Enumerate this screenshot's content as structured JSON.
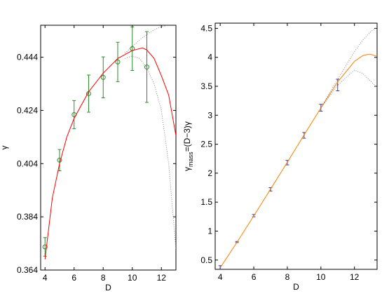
{
  "chart_data": [
    {
      "type": "line",
      "xlabel": "D",
      "ylabel": "γ",
      "xlim": [
        3.7,
        13
      ],
      "ylim": [
        0.364,
        0.456
      ],
      "xticks": [
        4,
        6,
        8,
        10,
        12
      ],
      "yticks": [
        0.364,
        0.384,
        0.404,
        0.424,
        0.444
      ],
      "series": [
        {
          "style": "points",
          "color": "#2e8b2e",
          "x": [
            4,
            5,
            6,
            7,
            8,
            9,
            10,
            11
          ],
          "values": [
            0.3727,
            0.4053,
            0.4224,
            0.4303,
            0.4364,
            0.4422,
            0.4472,
            0.4403
          ],
          "errors": [
            0.0035,
            0.004,
            0.0053,
            0.007,
            0.0077,
            0.0074,
            0.0082,
            0.0133
          ]
        },
        {
          "style": "solid",
          "color": "#ff0000",
          "x": [
            4,
            4.5,
            5,
            5.5,
            6,
            7,
            8,
            9,
            10,
            10.7,
            11,
            11.5,
            12,
            12.5,
            13
          ],
          "values": [
            0.368,
            0.391,
            0.404,
            0.414,
            0.421,
            0.431,
            0.438,
            0.4435,
            0.4465,
            0.4475,
            0.4467,
            0.4435,
            0.437,
            0.4298,
            0.4145
          ]
        },
        {
          "style": "dotted",
          "color": "#888888",
          "x": [
            9.5,
            10,
            10.5,
            11,
            11.5,
            12,
            12.3
          ],
          "values": [
            0.4455,
            0.448,
            0.4505,
            0.4525,
            0.4543,
            0.4555,
            0.4558
          ]
        },
        {
          "style": "dotted",
          "color": "#888888",
          "x": [
            9.5,
            10,
            10.5,
            11,
            11.5,
            12,
            12.5,
            13
          ],
          "values": [
            0.4435,
            0.4445,
            0.4435,
            0.44,
            0.434,
            0.424,
            0.404,
            0.372
          ]
        }
      ]
    },
    {
      "type": "line",
      "xlabel": "D",
      "ylabel": "γ",
      "ylabel_subscript": "mass",
      "ylabel_suffix": "=(D−3)γ",
      "xlim": [
        3.7,
        13.35
      ],
      "ylim": [
        0.34,
        4.59
      ],
      "xticks": [
        4,
        6,
        8,
        10,
        12
      ],
      "yticks": [
        0.5,
        1,
        1.5,
        2,
        2.5,
        3,
        3.5,
        4,
        4.5
      ],
      "series": [
        {
          "style": "points",
          "color": "#4040a0",
          "x": [
            4,
            5,
            6,
            7,
            8,
            9,
            10,
            11
          ],
          "values": [
            0.373,
            0.811,
            1.267,
            1.721,
            2.182,
            2.653,
            3.13,
            3.522
          ],
          "errors": [
            0.03,
            0.01,
            0.02,
            0.03,
            0.04,
            0.05,
            0.06,
            0.1
          ]
        },
        {
          "style": "solid",
          "color": "#ff7f00",
          "x": [
            4,
            5,
            6,
            7,
            8,
            9,
            10,
            11,
            12,
            12.5,
            12.8,
            13,
            13.3
          ],
          "values": [
            0.368,
            0.808,
            1.263,
            1.724,
            2.19,
            2.661,
            3.126,
            3.574,
            3.93,
            4.03,
            4.05,
            4.05,
            4.02
          ]
        },
        {
          "style": "dotted",
          "color": "#888888",
          "x": [
            10,
            11,
            12,
            12.5,
            13,
            13.35
          ],
          "values": [
            3.13,
            3.62,
            4.1,
            4.3,
            4.45,
            4.52
          ]
        },
        {
          "style": "dotted",
          "color": "#888888",
          "x": [
            10,
            11,
            12,
            12.5,
            13,
            13.35
          ],
          "values": [
            3.12,
            3.52,
            3.78,
            3.72,
            3.58,
            3.48
          ]
        }
      ]
    }
  ]
}
